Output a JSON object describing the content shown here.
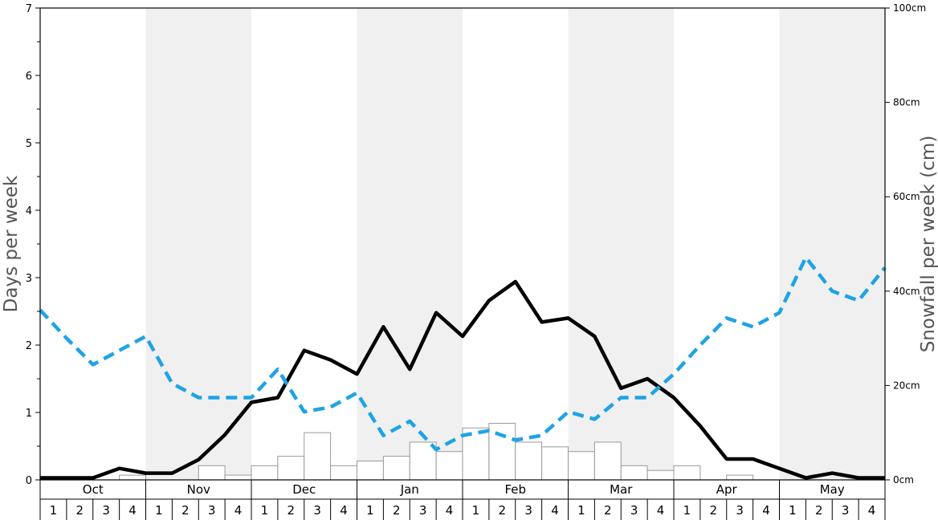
{
  "chart_data": {
    "type": "bar",
    "title": "",
    "y_left_label": "Days per week",
    "y_right_label": "Snowfall per week (cm)",
    "y_left_range": [
      0,
      7
    ],
    "y_left_ticks": [
      "0",
      "1",
      "2",
      "3",
      "4",
      "5",
      "6",
      "7"
    ],
    "y_right_range": [
      0,
      100
    ],
    "y_right_ticks": [
      "0cm",
      "20cm",
      "40cm",
      "60cm",
      "80cm",
      "100cm"
    ],
    "months": [
      "Oct",
      "Nov",
      "Dec",
      "Jan",
      "Feb",
      "Mar",
      "Apr",
      "May"
    ],
    "week_labels": [
      "1",
      "2",
      "3",
      "4"
    ],
    "shaded_months": [
      "Nov",
      "Jan",
      "Mar",
      "May"
    ],
    "legend": "none",
    "colors": {
      "shade": "#f0f0f0",
      "bar_fill": "#ffffff",
      "bar_stroke": "#999999",
      "line_black": "#000000",
      "line_blue": "#1ea3e6",
      "axis": "#000000"
    },
    "series": [
      {
        "type": "bar",
        "axis": "right",
        "values": [
          0,
          0,
          0,
          1,
          0,
          0,
          3,
          1,
          3,
          5,
          10,
          3,
          4,
          5,
          8,
          6,
          11,
          12,
          8,
          7,
          6,
          8,
          3,
          2,
          3,
          0,
          1,
          0,
          0,
          0,
          0,
          0
        ]
      },
      {
        "type": "line",
        "axis": "left",
        "style": "solid",
        "values": [
          0.03,
          0.03,
          0.03,
          0.17,
          0.1,
          0.1,
          0.3,
          0.67,
          1.15,
          1.22,
          1.92,
          1.78,
          1.57,
          2.27,
          1.64,
          2.48,
          2.13,
          2.66,
          2.94,
          2.34,
          2.4,
          2.13,
          1.36,
          1.5,
          1.22,
          0.8,
          0.31,
          0.31,
          0.17,
          0.03,
          0.1,
          0.03,
          0.03
        ]
      },
      {
        "type": "line",
        "axis": "left",
        "style": "dashed",
        "values": [
          2.52,
          2.1,
          1.71,
          1.92,
          2.13,
          1.43,
          1.22,
          1.22,
          1.22,
          1.64,
          1.01,
          1.08,
          1.29,
          0.66,
          0.87,
          0.45,
          0.66,
          0.73,
          0.59,
          0.66,
          1.01,
          0.9,
          1.22,
          1.22,
          1.57,
          2.0,
          2.4,
          2.27,
          2.48,
          3.3,
          2.8,
          2.66,
          3.15
        ]
      }
    ]
  }
}
